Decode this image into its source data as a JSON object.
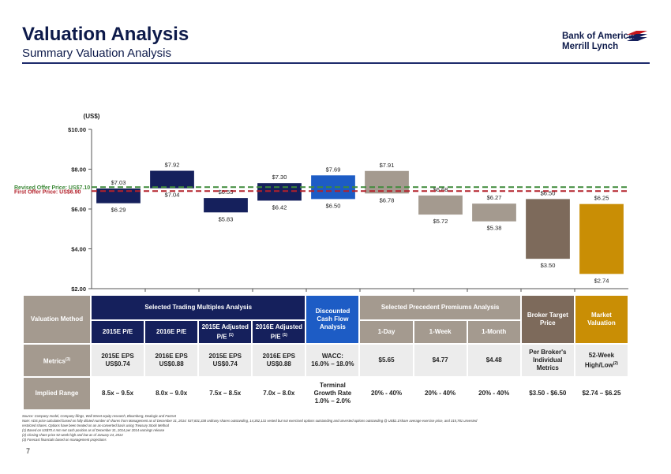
{
  "header": {
    "title": "Valuation Analysis",
    "subtitle": "Summary Valuation Analysis",
    "logo_line1": "Bank of America",
    "logo_line2": "Merrill Lynch"
  },
  "chart_data": {
    "type": "bar",
    "subtype": "floating-range",
    "unit_label": "(US$)",
    "ylim": [
      2,
      10
    ],
    "yticks": [
      "$2.00",
      "$4.00",
      "$6.00",
      "$8.00",
      "$10.00"
    ],
    "ytick_values": [
      2,
      4,
      6,
      8,
      10
    ],
    "ranges": [
      {
        "low": 6.29,
        "high": 7.03,
        "low_label": "$6.29",
        "high_label": "$7.03",
        "color": "#15205c"
      },
      {
        "low": 7.04,
        "high": 7.92,
        "low_label": "$7.04",
        "high_label": "$7.92",
        "color": "#15205c"
      },
      {
        "low": 5.83,
        "high": 6.55,
        "low_label": "$5.83",
        "high_label": "$6.55",
        "color": "#15205c"
      },
      {
        "low": 6.42,
        "high": 7.3,
        "low_label": "$6.42",
        "high_label": "$7.30",
        "color": "#15205c"
      },
      {
        "low": 6.5,
        "high": 7.69,
        "low_label": "$6.50",
        "high_label": "$7.69",
        "color": "#1d5cc5"
      },
      {
        "low": 6.78,
        "high": 7.91,
        "low_label": "$6.78",
        "high_label": "$7.91",
        "color": "#a49a8f"
      },
      {
        "low": 5.72,
        "high": 6.68,
        "low_label": "$5.72",
        "high_label": "$6.68",
        "color": "#a49a8f"
      },
      {
        "low": 5.38,
        "high": 6.27,
        "low_label": "$5.38",
        "high_label": "$6.27",
        "color": "#a49a8f"
      },
      {
        "low": 3.5,
        "high": 6.5,
        "low_label": "$3.50",
        "high_label": "$6.50",
        "color": "#7d6a5b"
      },
      {
        "low": 2.74,
        "high": 6.25,
        "low_label": "$2.74",
        "high_label": "$6.25",
        "color": "#c98e05"
      }
    ],
    "reference_lines": [
      {
        "label": "Revised Offer Price: US$7.10",
        "value": 7.1,
        "color": "#3f8a3a"
      },
      {
        "label": "First Offer Price: US$6.90",
        "value": 6.9,
        "color": "#b3202a"
      }
    ],
    "grid": false,
    "legend": "none"
  },
  "table": {
    "row_labels": {
      "method": "Valuation Method",
      "metrics": "Metrics",
      "metrics_sup": "(3)",
      "implied": "Implied Range"
    },
    "group_trading": "Selected Trading Multiples Analysis",
    "group_dcf": "Discounted Cash Flow Analysis",
    "group_precedent": "Selected Precedent Premiums Analysis",
    "group_broker": "Broker Target Price",
    "group_market": "Market Valuation",
    "sub": [
      {
        "text": "2015E P/E",
        "sup": ""
      },
      {
        "text": "2016E P/E",
        "sup": ""
      },
      {
        "text": "2015E Adjusted P/E",
        "sup": "(1)"
      },
      {
        "text": "2016E Adjusted P/E",
        "sup": "(1)"
      },
      {
        "text": "1-Day",
        "sup": ""
      },
      {
        "text": "1-Week",
        "sup": ""
      },
      {
        "text": "1-Month",
        "sup": ""
      }
    ],
    "metrics": [
      {
        "l1": "2015E EPS",
        "l2": "US$0.74"
      },
      {
        "l1": "2016E EPS",
        "l2": "US$0.88"
      },
      {
        "l1": "2015E EPS",
        "l2": "US$0.74"
      },
      {
        "l1": "2016E EPS",
        "l2": "US$0.88"
      },
      {
        "l1": "WACC:",
        "l2": "16.0% – 18.0%"
      },
      {
        "l1": "$5.65",
        "l2": ""
      },
      {
        "l1": "$4.77",
        "l2": ""
      },
      {
        "l1": "$4.48",
        "l2": ""
      },
      {
        "l1": "Per Broker's",
        "l2": "Individual Metrics"
      },
      {
        "l1": "52-Week",
        "l2": "High/Low",
        "sup": "(2)"
      }
    ],
    "implied": [
      {
        "l1": "8.5x – 9.5x",
        "l2": ""
      },
      {
        "l1": "8.0x – 9.0x",
        "l2": ""
      },
      {
        "l1": "7.5x – 8.5x",
        "l2": ""
      },
      {
        "l1": "7.0x – 8.0x",
        "l2": ""
      },
      {
        "l1": "Terminal",
        "l2": "Growth Rate 1.0% – 2.0%"
      },
      {
        "l1": "20% - 40%",
        "l2": ""
      },
      {
        "l1": "20% - 40%",
        "l2": ""
      },
      {
        "l1": "20% - 40%",
        "l2": ""
      },
      {
        "l1": "$3.50 - $6.50",
        "l2": ""
      },
      {
        "l1": "$2.74 – $6.25",
        "l2": ""
      }
    ]
  },
  "notes": [
    "Source: Company model, Company filings, Wall Street equity research, Bloomberg, Dealogic and Factset",
    "Note:    ADS price calculated based on fully diluted number of shares from Management as of December 31, 2014: 537,831,338 ordinary shares outstanding, 14,352,131 vested but not exercised options outstanding and unvested options outstanding @ US$2.1/share average exercise price, and 315,781 unvested",
    "            restricted shares. Options have been treated on an as-converted basis using Treasury Stock Method",
    "(1)      Based on US$70.4 mm net cash position as of December 31, 2014 per 2014 earnings release",
    "(2)      Closing share price 52-week high and low as of January 24, 2014",
    "(3)      Forecast financials based on management projections"
  ],
  "page_number": "7"
}
